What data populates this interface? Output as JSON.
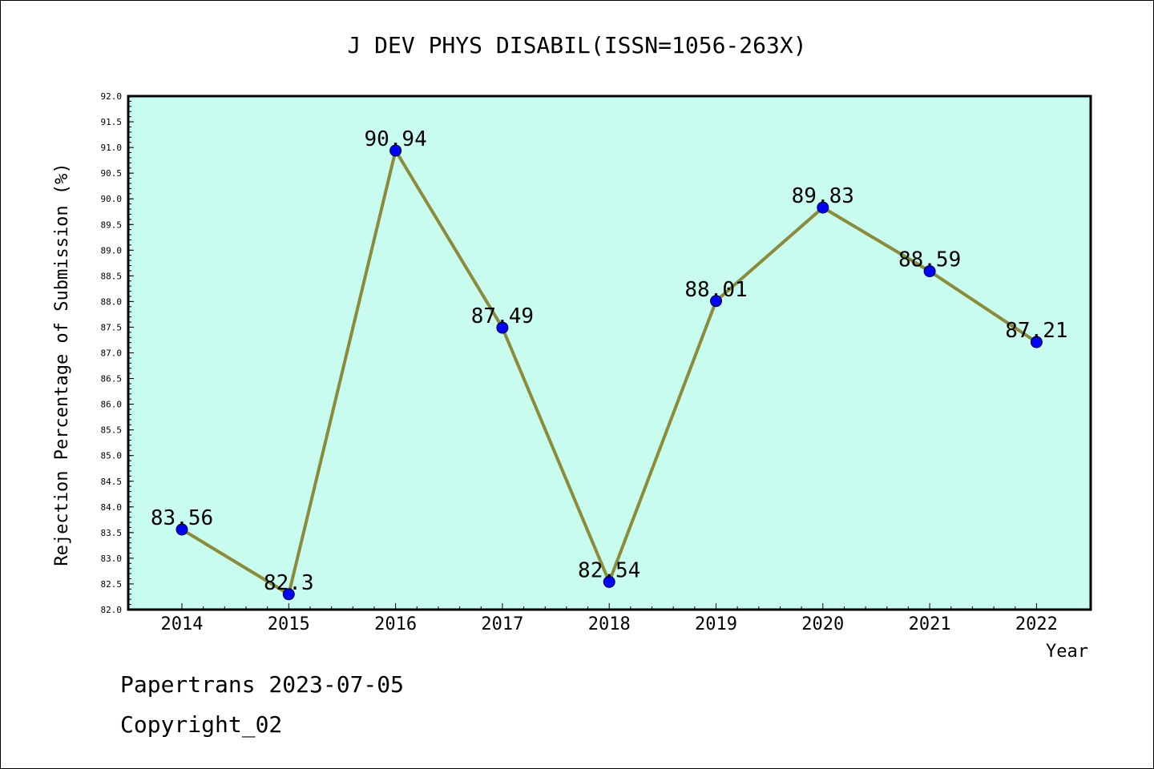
{
  "chart_data": {
    "type": "line",
    "title": "J DEV PHYS DISABIL(ISSN=1056-263X)",
    "xlabel": "Year",
    "ylabel": "Rejection Percentage of Submission (%)",
    "ylim": [
      82.0,
      92.0
    ],
    "ytick_step": 0.5,
    "categories": [
      "2014",
      "2015",
      "2016",
      "2017",
      "2018",
      "2019",
      "2020",
      "2021",
      "2022"
    ],
    "values": [
      83.56,
      82.3,
      90.94,
      87.49,
      82.54,
      88.01,
      89.83,
      88.59,
      87.21
    ],
    "value_labels": [
      "83.56",
      "82.3",
      "90.94",
      "87.49",
      "82.54",
      "88.01",
      "89.83",
      "88.59",
      "87.21"
    ],
    "grid": false,
    "colors": {
      "plot_background": "#c7fcee",
      "line": "#8b8b3a",
      "marker": "#0000ff"
    }
  },
  "footer": {
    "line1": "Papertrans 2023-07-05",
    "line2": "Copyright_02"
  }
}
